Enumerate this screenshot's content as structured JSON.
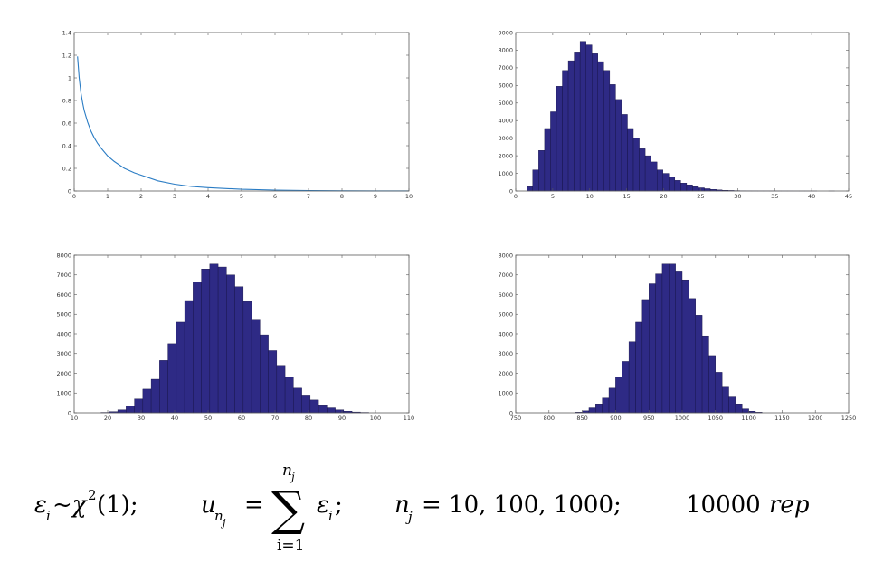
{
  "colors": {
    "line": "#2a7cc4",
    "bar_fill": "#2e2a85",
    "bar_edge": "#121040",
    "axes": "#5a5a5a"
  },
  "chart_data": [
    {
      "type": "line",
      "xlim": [
        0,
        10
      ],
      "ylim": [
        0,
        1.4
      ],
      "xticks": [
        "0",
        "1",
        "2",
        "3",
        "4",
        "5",
        "6",
        "7",
        "8",
        "9",
        "10"
      ],
      "yticks": [
        "0",
        "0.2",
        "0.4",
        "0.6",
        "0.8",
        "1",
        "1.2",
        "1.4"
      ],
      "x": [
        0.1,
        0.15,
        0.2,
        0.25,
        0.3,
        0.4,
        0.5,
        0.6,
        0.7,
        0.8,
        1.0,
        1.2,
        1.5,
        1.8,
        2.0,
        2.5,
        3.0,
        3.5,
        4.0,
        5.0,
        6.0,
        7.0,
        8.0,
        9.0,
        10.0
      ],
      "y": [
        1.19,
        1.0,
        0.87,
        0.78,
        0.71,
        0.61,
        0.53,
        0.47,
        0.42,
        0.38,
        0.31,
        0.26,
        0.2,
        0.16,
        0.14,
        0.09,
        0.06,
        0.04,
        0.03,
        0.015,
        0.008,
        0.004,
        0.002,
        0.001,
        0.0008
      ],
      "grid": false
    },
    {
      "type": "bar",
      "xlim": [
        0,
        45
      ],
      "ylim": [
        0,
        9000
      ],
      "xticks": [
        "0",
        "5",
        "10",
        "15",
        "20",
        "25",
        "30",
        "35",
        "40",
        "45"
      ],
      "yticks": [
        "0",
        "1000",
        "2000",
        "3000",
        "4000",
        "5000",
        "6000",
        "7000",
        "8000",
        "9000"
      ],
      "bin_start": 0.7,
      "bin_width": 0.8,
      "values": [
        0,
        250,
        1200,
        2300,
        3550,
        4500,
        5950,
        6850,
        7400,
        7850,
        8500,
        8300,
        7800,
        7350,
        6850,
        6050,
        5200,
        4350,
        3550,
        3000,
        2400,
        2000,
        1650,
        1200,
        1000,
        800,
        600,
        450,
        350,
        250,
        180,
        130,
        90,
        60,
        40,
        30,
        20,
        15,
        10,
        8,
        6,
        5,
        4,
        3,
        2,
        2,
        1,
        1,
        1,
        1,
        0,
        0,
        1,
        0
      ],
      "grid": false
    },
    {
      "type": "bar",
      "xlim": [
        10,
        110
      ],
      "ylim": [
        0,
        8000
      ],
      "xticks": [
        "10",
        "20",
        "30",
        "40",
        "50",
        "60",
        "70",
        "80",
        "90",
        "100",
        "110"
      ],
      "yticks": [
        "0",
        "1000",
        "2000",
        "3000",
        "4000",
        "5000",
        "6000",
        "7000",
        "8000"
      ],
      "bin_start": 18,
      "bin_width": 2.5,
      "values": [
        20,
        60,
        150,
        350,
        700,
        1200,
        1700,
        2650,
        3500,
        4600,
        5700,
        6650,
        7300,
        7550,
        7400,
        7000,
        6400,
        5650,
        4750,
        3950,
        3150,
        2400,
        1800,
        1250,
        900,
        650,
        400,
        250,
        150,
        80,
        40,
        20
      ],
      "grid": false
    },
    {
      "type": "bar",
      "xlim": [
        750,
        1250
      ],
      "ylim": [
        0,
        8000
      ],
      "xticks": [
        "750",
        "800",
        "850",
        "900",
        "950",
        "1000",
        "1050",
        "1100",
        "1150",
        "1200",
        "1250"
      ],
      "yticks": [
        "0",
        "1000",
        "2000",
        "3000",
        "4000",
        "5000",
        "6000",
        "7000",
        "8000"
      ],
      "bin_start": 840,
      "bin_width": 10,
      "values": [
        30,
        100,
        250,
        450,
        750,
        1250,
        1800,
        2600,
        3600,
        4600,
        5750,
        6550,
        7050,
        7550,
        7550,
        7200,
        6750,
        5800,
        4950,
        3900,
        2900,
        2050,
        1300,
        800,
        450,
        200,
        80,
        30
      ],
      "grid": false
    }
  ],
  "formula": {
    "eps_term": "ε",
    "i_sub": "i",
    "tilde_chi": "~χ",
    "sq": "2",
    "chi_arg": "(1);",
    "u": "u",
    "n_sub": "n",
    "j_sub": "j",
    "equals": "=",
    "sum_top_n": "n",
    "sum_top_j": "j",
    "sigma": "∑",
    "sum_bottom": "i=1",
    "eps2": "ε",
    "i2": "i",
    "semi": ";",
    "n_label": "n",
    "n_label_sub": "j",
    "n_values": "= 10, 100, 1000;",
    "reps": "10000",
    "rep_word": "rep"
  }
}
